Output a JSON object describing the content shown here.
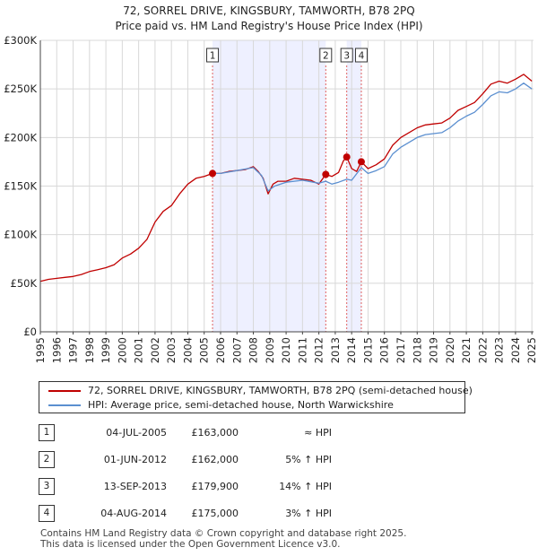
{
  "chart_data": {
    "type": "line",
    "title": "72, SORREL DRIVE, KINGSBURY, TAMWORTH, B78 2PQ",
    "subtitle": "Price paid vs. HM Land Registry's House Price Index (HPI)",
    "xlim": [
      1995,
      2025.1
    ],
    "ylim": [
      0,
      300000
    ],
    "x_ticks": [
      "1995",
      "1996",
      "1997",
      "1998",
      "1999",
      "2000",
      "2001",
      "2002",
      "2003",
      "2004",
      "2005",
      "2006",
      "2007",
      "2008",
      "2009",
      "2010",
      "2011",
      "2012",
      "2013",
      "2014",
      "2015",
      "2016",
      "2017",
      "2018",
      "2019",
      "2020",
      "2021",
      "2022",
      "2023",
      "2024",
      "2025"
    ],
    "y_ticks": [
      {
        "value": 0,
        "label": "£0"
      },
      {
        "value": 50000,
        "label": "£50K"
      },
      {
        "value": 100000,
        "label": "£100K"
      },
      {
        "value": 150000,
        "label": "£150K"
      },
      {
        "value": 200000,
        "label": "£200K"
      },
      {
        "value": 250000,
        "label": "£250K"
      },
      {
        "value": 300000,
        "label": "£300K"
      }
    ],
    "shaded_periods": [
      [
        2005.51,
        2012.42
      ],
      [
        2013.7,
        2014.59
      ]
    ],
    "series": [
      {
        "name": "72, SORREL DRIVE, KINGSBURY, TAMWORTH, B78 2PQ (semi-detached house)",
        "color": "#c00000",
        "x": [
          1995,
          1995.5,
          1996,
          1996.5,
          1997,
          1997.5,
          1998,
          1998.5,
          1999,
          1999.5,
          2000,
          2000.5,
          2001,
          2001.5,
          2002,
          2002.5,
          2003,
          2003.5,
          2004,
          2004.5,
          2005,
          2005.51,
          2006,
          2006.5,
          2007,
          2007.5,
          2008,
          2008.3,
          2008.6,
          2008.9,
          2009.2,
          2009.5,
          2010,
          2010.5,
          2011,
          2011.5,
          2012,
          2012.42,
          2012.8,
          2013.2,
          2013.5,
          2013.7,
          2014,
          2014.3,
          2014.59,
          2015,
          2015.5,
          2016,
          2016.5,
          2017,
          2017.5,
          2018,
          2018.5,
          2019,
          2019.5,
          2020,
          2020.5,
          2021,
          2021.5,
          2022,
          2022.5,
          2023,
          2023.5,
          2024,
          2024.5,
          2025
        ],
        "y": [
          52000,
          54000,
          55000,
          56000,
          57000,
          59000,
          62000,
          64000,
          66000,
          69000,
          76000,
          80000,
          86000,
          95000,
          113000,
          124000,
          130000,
          142000,
          152000,
          158000,
          160000,
          163000,
          163000,
          165000,
          166000,
          167000,
          170000,
          165000,
          158000,
          142000,
          152000,
          155000,
          155000,
          158000,
          157000,
          156000,
          152000,
          162000,
          160000,
          164000,
          176000,
          179900,
          168000,
          165000,
          175000,
          168000,
          172000,
          178000,
          192000,
          200000,
          205000,
          210000,
          213000,
          214000,
          215000,
          220000,
          228000,
          232000,
          236000,
          245000,
          255000,
          258000,
          256000,
          260000,
          265000,
          258000
        ]
      },
      {
        "name": "HPI: Average price, semi-detached house, North Warwickshire",
        "color": "#5b8fd0",
        "x": [
          2005.51,
          2006,
          2007,
          2008,
          2008.5,
          2008.9,
          2009.3,
          2010,
          2011,
          2012,
          2012.42,
          2012.8,
          2013.2,
          2013.7,
          2014,
          2014.59,
          2015,
          2015.5,
          2016,
          2016.5,
          2017,
          2017.5,
          2018,
          2018.5,
          2019,
          2019.5,
          2020,
          2020.5,
          2021,
          2021.5,
          2022,
          2022.5,
          2023,
          2023.5,
          2024,
          2024.5,
          2025
        ],
        "y": [
          163000,
          163000,
          166000,
          169000,
          161000,
          145000,
          150000,
          154000,
          156000,
          153000,
          155000,
          152000,
          154000,
          157000,
          156000,
          169000,
          163000,
          166000,
          170000,
          183000,
          190000,
          195000,
          200000,
          203000,
          204000,
          205000,
          210000,
          217000,
          222000,
          226000,
          234000,
          243000,
          247000,
          246000,
          250000,
          256000,
          250000
        ]
      }
    ],
    "sales": [
      {
        "label": "1",
        "date": "04-JUL-2005",
        "x": 2005.51,
        "price": 163000
      },
      {
        "label": "2",
        "date": "01-JUN-2012",
        "x": 2012.42,
        "price": 162000
      },
      {
        "label": "3",
        "date": "13-SEP-2013",
        "x": 2013.7,
        "price": 179900
      },
      {
        "label": "4",
        "date": "04-AUG-2014",
        "x": 2014.59,
        "price": 175000
      }
    ]
  },
  "legend": {
    "property_label": "72, SORREL DRIVE, KINGSBURY, TAMWORTH, B78 2PQ (semi-detached house)",
    "hpi_label": "HPI: Average price, semi-detached house, North Warwickshire"
  },
  "sales_table": [
    {
      "num": "1",
      "date": "04-JUL-2005",
      "price": "£163,000",
      "hpi": "≈ HPI"
    },
    {
      "num": "2",
      "date": "01-JUN-2012",
      "price": "£162,000",
      "hpi": "5% ↑ HPI"
    },
    {
      "num": "3",
      "date": "13-SEP-2013",
      "price": "£179,900",
      "hpi": "14% ↑ HPI"
    },
    {
      "num": "4",
      "date": "04-AUG-2014",
      "price": "£175,000",
      "hpi": "3% ↑ HPI"
    }
  ],
  "footer": {
    "line1": "Contains HM Land Registry data © Crown copyright and database right 2025.",
    "line2": "This data is licensed under the Open Government Licence v3.0."
  }
}
